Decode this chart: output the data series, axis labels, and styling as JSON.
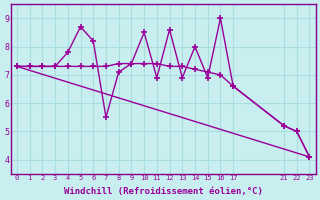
{
  "background_color": "#c8eef0",
  "grid_color": "#aadddd",
  "line_color": "#990099",
  "marker_color": "#990099",
  "xlabel": "Windchill (Refroidissement éolien,°C)",
  "ylabel": "",
  "xlim": [
    -0.5,
    23.5
  ],
  "ylim": [
    3.5,
    9.5
  ],
  "yticks": [
    4,
    5,
    6,
    7,
    8,
    9
  ],
  "xticks": [
    0,
    1,
    2,
    3,
    4,
    5,
    6,
    7,
    8,
    9,
    10,
    11,
    12,
    13,
    14,
    15,
    16,
    17,
    21,
    22,
    23
  ],
  "series": [
    {
      "x": [
        0,
        1,
        2,
        3,
        4,
        5,
        6,
        7,
        8,
        9,
        10,
        11,
        12,
        13,
        14,
        15,
        16,
        17,
        21,
        22,
        23
      ],
      "y": [
        7.3,
        7.3,
        7.3,
        7.3,
        7.8,
        8.7,
        8.2,
        5.5,
        7.1,
        7.4,
        8.5,
        6.9,
        8.6,
        6.9,
        8.0,
        6.9,
        9.0,
        6.6,
        5.2,
        5.0,
        4.1
      ]
    },
    {
      "x": [
        0,
        1,
        2,
        3,
        4,
        5,
        6,
        7,
        8,
        9,
        10,
        11,
        12,
        13,
        14,
        15,
        16,
        17,
        21,
        22,
        23
      ],
      "y": [
        7.3,
        7.3,
        7.3,
        7.3,
        7.3,
        7.3,
        7.3,
        7.3,
        7.4,
        7.4,
        7.4,
        7.4,
        7.3,
        7.3,
        7.2,
        7.1,
        7.0,
        6.6,
        5.2,
        5.0,
        4.1
      ]
    },
    {
      "x": [
        0,
        23
      ],
      "y": [
        7.3,
        4.1
      ]
    }
  ]
}
